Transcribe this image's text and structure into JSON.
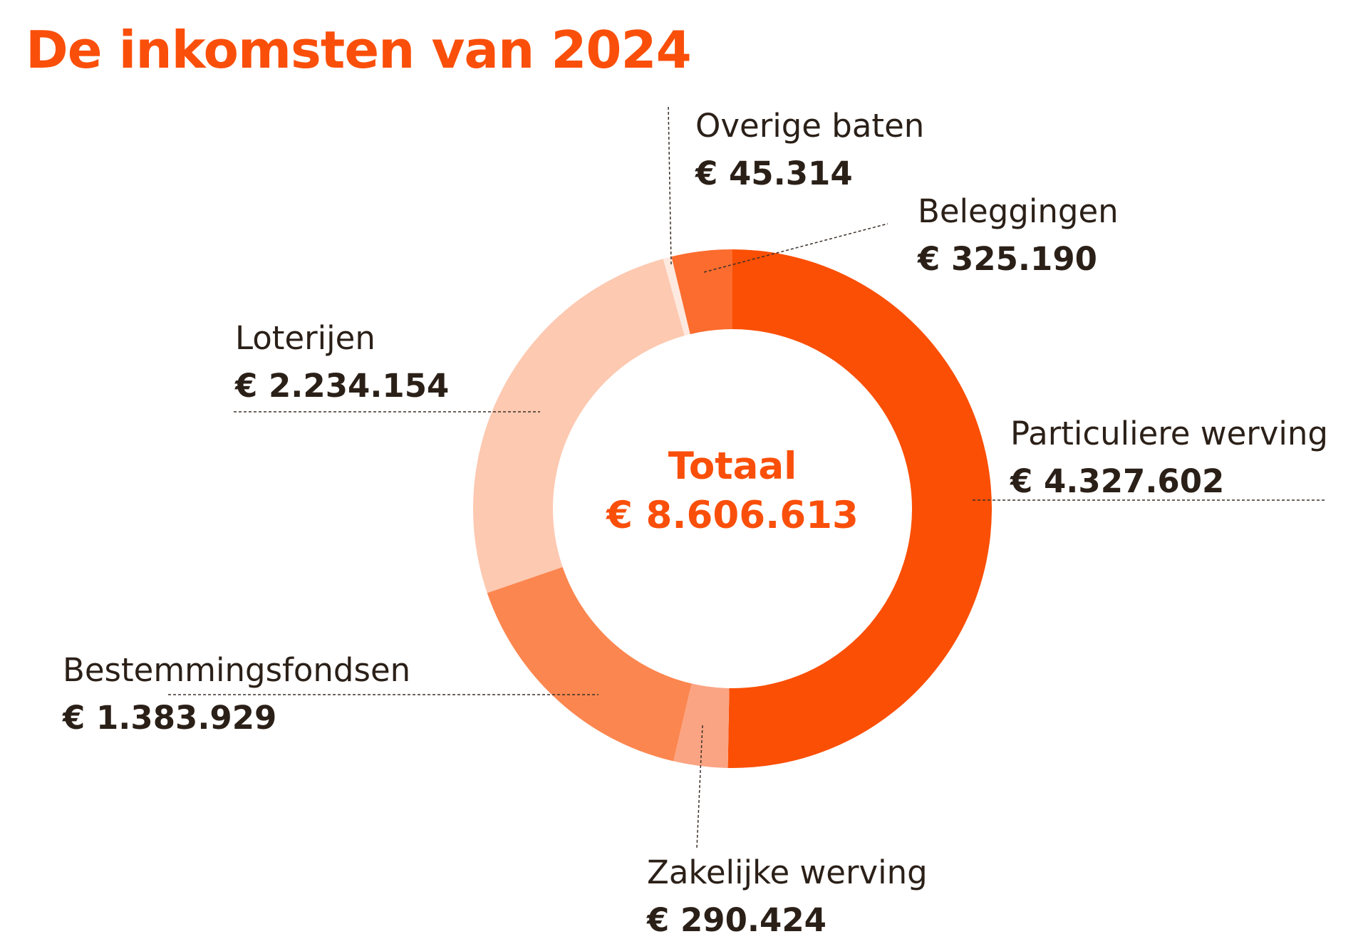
{
  "title": "De inkomsten van 2024",
  "chart_data": {
    "type": "pie",
    "variant": "donut",
    "title": "De inkomsten van 2024",
    "center_label": "Totaal",
    "center_value": "€ 8.606.613",
    "total": 8606613,
    "slices": [
      {
        "name": "Particuliere werving",
        "value": 4327602,
        "display": "€ 4.327.602",
        "color": "#fa4f05"
      },
      {
        "name": "Zakelijke werving",
        "value": 290424,
        "display": "€ 290.424",
        "color": "#fba483"
      },
      {
        "name": "Bestemmingsfondsen",
        "value": 1383929,
        "display": "€ 1.383.929",
        "color": "#fc864f"
      },
      {
        "name": "Loterijen",
        "value": 2234154,
        "display": "€ 2.234.154",
        "color": "#fdc9b1"
      },
      {
        "name": "Overige baten",
        "value": 45314,
        "display": "€ 45.314",
        "color": "#fde9df"
      },
      {
        "name": "Beleggingen",
        "value": 325190,
        "display": "€ 325.190",
        "color": "#fb6c2e"
      }
    ],
    "legend": "none",
    "labels": "outside"
  }
}
